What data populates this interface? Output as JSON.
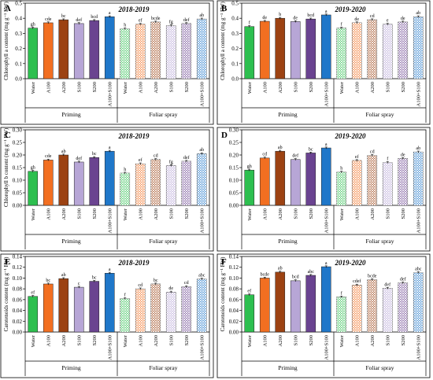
{
  "figure": {
    "categories": [
      "Water",
      "A100",
      "A200",
      "S100",
      "S200",
      "A100+S100"
    ],
    "group_labels": [
      "Priming",
      "Foliar spray"
    ],
    "colors": {
      "Water": "#2dbf4f",
      "A100": "#f26f21",
      "A200": "#9c4212",
      "S100": "#b7a6d6",
      "S200": "#6a4390",
      "A100+S100": "#1f77c9"
    },
    "foliar_pattern": "crosshatch"
  },
  "chart_data": [
    {
      "panel": "A",
      "type": "bar",
      "title": "2018-2019",
      "ylabel": "Chlorophyll a content (mg g⁻¹ FW)",
      "ylim": [
        0,
        0.5
      ],
      "yticks": [
        "0.0",
        "0.1",
        "0.2",
        "0.3",
        "0.4",
        "0.5"
      ],
      "series": [
        {
          "name": "Priming",
          "values": [
            0.335,
            0.37,
            0.39,
            0.365,
            0.385,
            0.41
          ],
          "letters": [
            "gh",
            "cde",
            "bc",
            "def",
            "bcd",
            "a"
          ]
        },
        {
          "name": "Foliar spray",
          "values": [
            0.33,
            0.36,
            0.375,
            0.35,
            0.365,
            0.395
          ],
          "letters": [
            "h",
            "ef",
            "bcde",
            "fg",
            "def",
            "ab"
          ]
        }
      ]
    },
    {
      "panel": "B",
      "type": "bar",
      "title": "2019-2020",
      "ylabel": "Chlorophyll a content (mg g⁻¹ FW)",
      "ylim": [
        0,
        0.5
      ],
      "yticks": [
        "0.0",
        "0.1",
        "0.2",
        "0.3",
        "0.4",
        "0.5"
      ],
      "series": [
        {
          "name": "Priming",
          "values": [
            0.345,
            0.38,
            0.4,
            0.378,
            0.395,
            0.422
          ],
          "letters": [
            "f",
            "de",
            "b",
            "de",
            "bcd",
            "a"
          ]
        },
        {
          "name": "Foliar spray",
          "values": [
            0.335,
            0.37,
            0.39,
            0.36,
            0.375,
            0.41
          ],
          "letters": [
            "f",
            "de",
            "cd",
            "e",
            "de",
            "ab"
          ]
        }
      ]
    },
    {
      "panel": "C",
      "type": "bar",
      "title": "2018-2019",
      "ylabel": "Chlorophyll b content (mg g⁻¹ FW)",
      "ylim": [
        0,
        0.3
      ],
      "yticks": [
        "0.00",
        "0.05",
        "0.10",
        "0.15",
        "0.20",
        "0.25",
        "0.30"
      ],
      "series": [
        {
          "name": "Priming",
          "values": [
            0.135,
            0.18,
            0.2,
            0.172,
            0.19,
            0.215
          ],
          "letters": [
            "gh",
            "cde",
            "ab",
            "def",
            "bc",
            "a"
          ]
        },
        {
          "name": "Foliar spray",
          "values": [
            0.128,
            0.165,
            0.182,
            0.158,
            0.175,
            0.205
          ],
          "letters": [
            "h",
            "ef",
            "cd",
            "fg",
            "def",
            "ab"
          ]
        }
      ]
    },
    {
      "panel": "D",
      "type": "bar",
      "title": "2019-2020",
      "ylabel": "",
      "ylim": [
        0,
        0.3
      ],
      "yticks": [
        "0.00",
        "0.05",
        "0.10",
        "0.15",
        "0.20",
        "0.25",
        "0.30"
      ],
      "series": [
        {
          "name": "Priming",
          "values": [
            0.14,
            0.188,
            0.215,
            0.182,
            0.208,
            0.228
          ],
          "letters": [
            "gh",
            "cd",
            "ab",
            "def",
            "bc",
            "a"
          ]
        },
        {
          "name": "Foliar spray",
          "values": [
            0.132,
            0.178,
            0.198,
            0.17,
            0.186,
            0.212
          ],
          "letters": [
            "h",
            "ef",
            "cd",
            "f",
            "de",
            "ab"
          ]
        }
      ]
    },
    {
      "panel": "E",
      "type": "bar",
      "title": "2018-2019",
      "ylabel": "Carotenoids content (mg g⁻¹ FW)",
      "ylim": [
        0,
        0.14
      ],
      "yticks": [
        "0.00",
        "0.02",
        "0.04",
        "0.06",
        "0.08",
        "0.10",
        "0.12",
        "0.14"
      ],
      "series": [
        {
          "name": "Priming",
          "values": [
            0.066,
            0.089,
            0.099,
            0.083,
            0.094,
            0.109
          ],
          "letters": [
            "ef",
            "bc",
            "ab",
            "c",
            "bc",
            "a"
          ]
        },
        {
          "name": "Foliar spray",
          "values": [
            0.062,
            0.08,
            0.089,
            0.074,
            0.084,
            0.098
          ],
          "letters": [
            "f",
            "cd",
            "bc",
            "de",
            "cd",
            "abc"
          ]
        }
      ]
    },
    {
      "panel": "F",
      "type": "bar",
      "title": "2019-2020",
      "ylabel": "Carotenoids content (mg g⁻¹ FW)",
      "ylim": [
        0,
        0.14
      ],
      "yticks": [
        "0.00",
        "0.02",
        "0.04",
        "0.06",
        "0.08",
        "0.10",
        "0.12",
        "0.14"
      ],
      "series": [
        {
          "name": "Priming",
          "values": [
            0.069,
            0.1,
            0.111,
            0.095,
            0.105,
            0.121
          ],
          "letters": [
            "ef",
            "bcde",
            "ab",
            "bcd",
            "abc",
            "a"
          ]
        },
        {
          "name": "Foliar spray",
          "values": [
            0.065,
            0.087,
            0.097,
            0.081,
            0.091,
            0.11
          ],
          "letters": [
            "f",
            "cdef",
            "bcde",
            "def",
            "def",
            "abc"
          ]
        }
      ]
    }
  ]
}
